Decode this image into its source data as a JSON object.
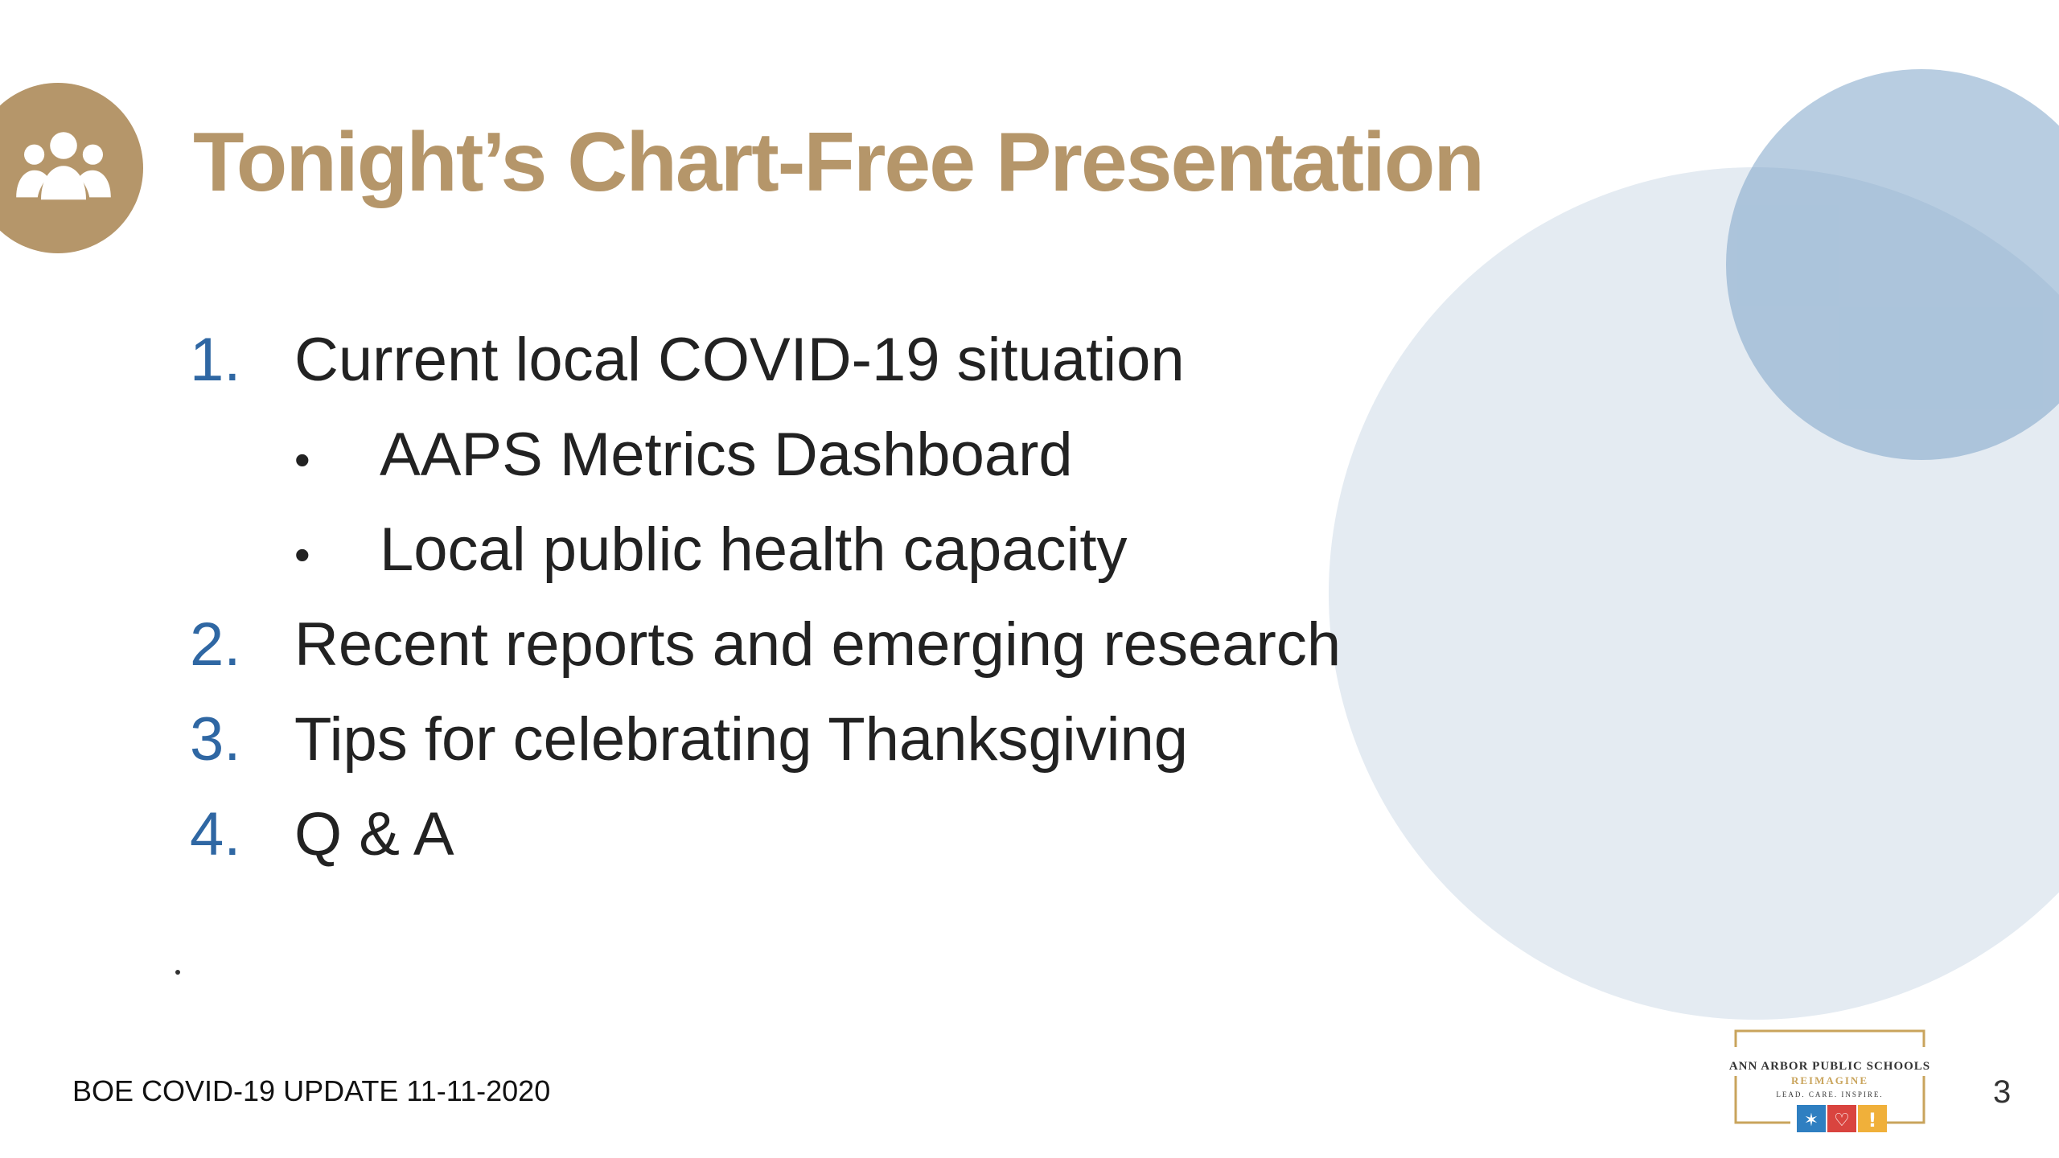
{
  "slide": {
    "title": "Tonight’s Chart-Free Presentation",
    "title_icon": "group-people-icon",
    "colors": {
      "title": "#b5966a",
      "number": "#2f67a3",
      "text": "#222222",
      "circle_large": "#e4ebf2",
      "circle_small": "#7da4c9"
    },
    "agenda": [
      {
        "number": "1.",
        "text": "Current local COVID-19 situation"
      },
      {
        "number": "2.",
        "text": "Recent reports and emerging research"
      },
      {
        "number": "3.",
        "text": "Tips for celebrating Thanksgiving"
      },
      {
        "number": "4.",
        "text": "Q & A"
      }
    ],
    "sub_items": [
      {
        "bullet": "•",
        "text": "AAPS Metrics Dashboard"
      },
      {
        "bullet": "•",
        "text": "Local public health capacity"
      }
    ],
    "footer": "BOE COVID-19 UPDATE 11-11-2020",
    "page_number": "3",
    "logo": {
      "line1": "ANN ARBOR PUBLIC SCHOOLS",
      "line2": "REIMAGINE",
      "line3": "LEAD. CARE. INSPIRE."
    }
  }
}
